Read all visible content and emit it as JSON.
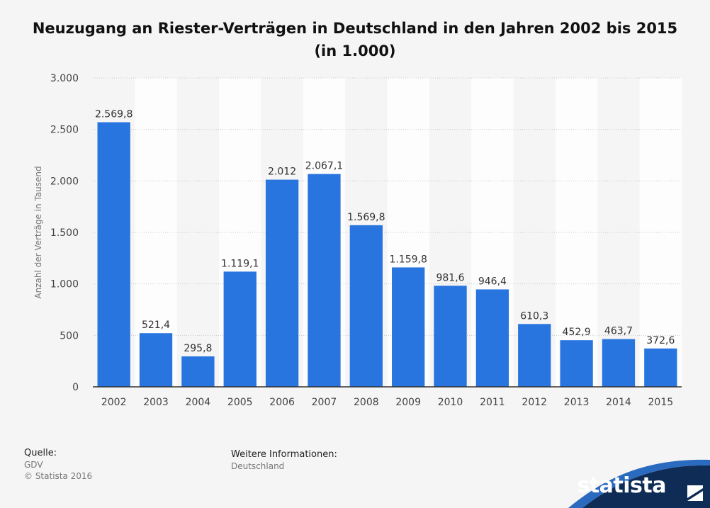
{
  "chart_data": {
    "type": "bar",
    "title": "Neuzugang an Riester-Verträgen in Deutschland in den Jahren 2002 bis 2015 (in 1.000)",
    "xlabel": "",
    "ylabel": "Anzahl der Verträge in Tausend",
    "ylim": [
      0,
      3000
    ],
    "yticks": [
      0,
      500,
      1000,
      1500,
      2000,
      2500,
      3000
    ],
    "ytick_labels": [
      "0",
      "500",
      "1.000",
      "1.500",
      "2.000",
      "2.500",
      "3.000"
    ],
    "categories": [
      "2002",
      "2003",
      "2004",
      "2005",
      "2006",
      "2007",
      "2008",
      "2009",
      "2010",
      "2011",
      "2012",
      "2013",
      "2014",
      "2015"
    ],
    "values": [
      2569.8,
      521.4,
      295.8,
      1119.1,
      2012,
      2067.1,
      1569.8,
      1159.8,
      981.6,
      946.4,
      610.3,
      452.9,
      463.7,
      372.6
    ],
    "value_labels": [
      "2.569,8",
      "521,4",
      "295,8",
      "1.119,1",
      "2.012",
      "2.067,1",
      "1.569,8",
      "1.159,8",
      "981,6",
      "946,4",
      "610,3",
      "452,9",
      "463,7",
      "372,6"
    ],
    "grid": true,
    "bar_color": "#2875df"
  },
  "footer": {
    "source_label": "Quelle:",
    "source_value": "GDV",
    "copyright": "© Statista 2016",
    "info_label": "Weitere Informationen:",
    "info_value": "Deutschland"
  },
  "brand": {
    "name": "statista",
    "color": "#0e2c55",
    "accent": "#2b6bbf"
  }
}
